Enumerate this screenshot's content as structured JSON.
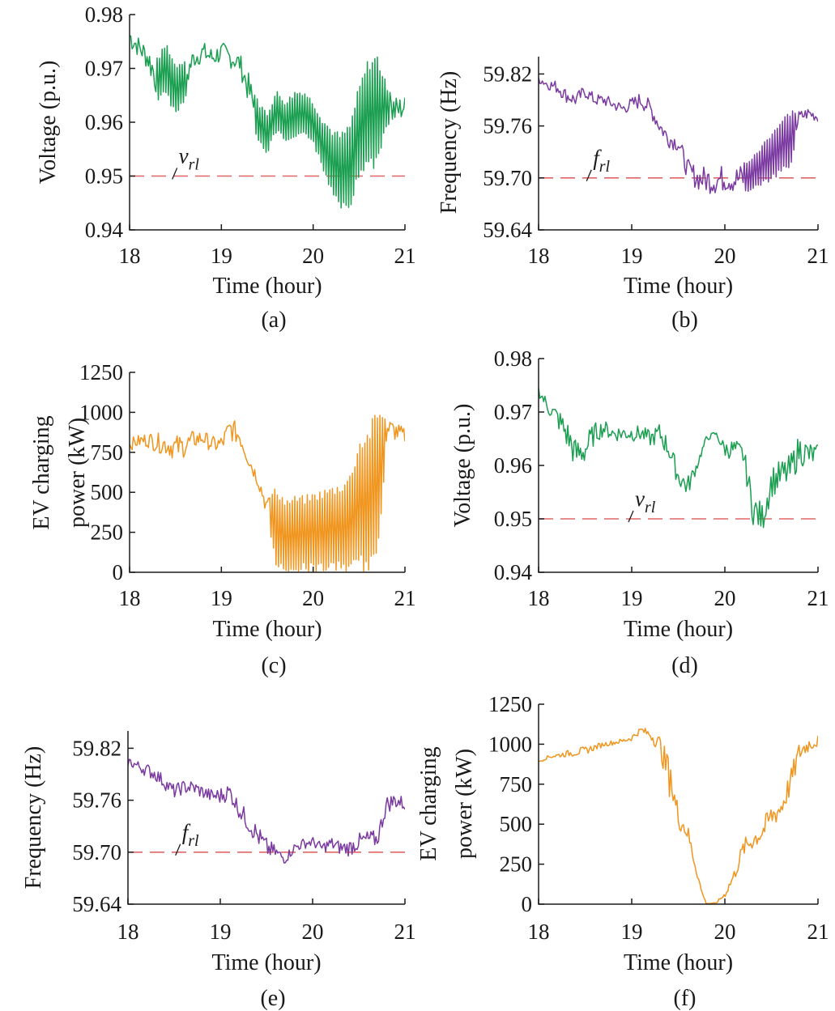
{
  "chart_data": [
    {
      "type": "line",
      "caption": "(a)",
      "xlabel": "Time (hour)",
      "ylabel": "Voltage (p.u.)",
      "xlim": [
        18,
        21
      ],
      "ylim": [
        0.94,
        0.98
      ],
      "xticks": [
        18,
        19,
        20,
        21
      ],
      "yticks": [
        0.94,
        0.95,
        0.96,
        0.97,
        0.98
      ],
      "ytick_labels": [
        "0.94",
        "0.95",
        "0.96",
        "0.97",
        "0.98"
      ],
      "reference": {
        "label": "v",
        "subscript": "rl",
        "value": 0.95,
        "at_x": 18.5
      },
      "series": [
        {
          "color": "#1a9e50",
          "x": [
            18.0,
            18.1,
            18.2,
            18.3,
            18.4,
            18.5,
            18.6,
            18.7,
            18.8,
            18.9,
            19.0,
            19.1,
            19.2,
            19.3,
            19.4,
            19.5,
            19.6,
            19.7,
            19.8,
            19.9,
            20.0,
            20.1,
            20.2,
            20.3,
            20.4,
            20.5,
            20.6,
            20.7,
            20.8,
            20.9,
            21.0
          ],
          "y": [
            0.976,
            0.974,
            0.972,
            0.968,
            0.97,
            0.966,
            0.968,
            0.972,
            0.973,
            0.972,
            0.973,
            0.972,
            0.971,
            0.966,
            0.96,
            0.958,
            0.962,
            0.96,
            0.961,
            0.962,
            0.96,
            0.956,
            0.953,
            0.951,
            0.952,
            0.958,
            0.962,
            0.962,
            0.963,
            0.962,
            0.963
          ],
          "amp": [
            0.0025,
            0.002,
            0.0025,
            0.004,
            0.005,
            0.005,
            0.004,
            0.002,
            0.002,
            0.002,
            0.002,
            0.002,
            0.002,
            0.003,
            0.004,
            0.004,
            0.004,
            0.004,
            0.005,
            0.004,
            0.004,
            0.005,
            0.006,
            0.007,
            0.008,
            0.009,
            0.01,
            0.011,
            0.004,
            0.003,
            0.002
          ]
        }
      ]
    },
    {
      "type": "line",
      "caption": "(b)",
      "xlabel": "Time (hour)",
      "ylabel": "Frequency (Hz)",
      "xlim": [
        18,
        21
      ],
      "ylim": [
        59.64,
        59.84
      ],
      "xticks": [
        18,
        19,
        20,
        21
      ],
      "yticks": [
        59.64,
        59.7,
        59.76,
        59.82
      ],
      "ytick_labels": [
        "59.64",
        "59.70",
        "59.76",
        "59.82"
      ],
      "reference": {
        "label": "f",
        "subscript": "rl",
        "value": 59.7,
        "at_x": 18.55
      },
      "series": [
        {
          "color": "#7a3aa0",
          "x": [
            18.0,
            18.1,
            18.2,
            18.3,
            18.4,
            18.5,
            18.6,
            18.7,
            18.8,
            18.9,
            19.0,
            19.1,
            19.2,
            19.3,
            19.4,
            19.5,
            19.6,
            19.7,
            19.8,
            19.9,
            20.0,
            20.1,
            20.2,
            20.3,
            20.4,
            20.5,
            20.6,
            20.7,
            20.8,
            20.9,
            21.0
          ],
          "y": [
            59.815,
            59.808,
            59.805,
            59.795,
            59.79,
            59.8,
            59.79,
            59.79,
            59.785,
            59.78,
            59.785,
            59.79,
            59.78,
            59.76,
            59.745,
            59.74,
            59.71,
            59.7,
            59.698,
            59.697,
            59.7,
            59.698,
            59.7,
            59.705,
            59.715,
            59.725,
            59.735,
            59.745,
            59.77,
            59.775,
            59.77
          ],
          "amp": [
            0.006,
            0.006,
            0.008,
            0.008,
            0.008,
            0.008,
            0.007,
            0.007,
            0.007,
            0.007,
            0.008,
            0.01,
            0.01,
            0.01,
            0.01,
            0.01,
            0.012,
            0.014,
            0.016,
            0.016,
            0.016,
            0.016,
            0.018,
            0.02,
            0.024,
            0.03,
            0.032,
            0.034,
            0.008,
            0.007,
            0.006
          ]
        }
      ]
    },
    {
      "type": "line",
      "caption": "(c)",
      "xlabel": "Time (hour)",
      "ylabel": [
        "EV charging",
        "power (kW)"
      ],
      "xlim": [
        18,
        21
      ],
      "ylim": [
        0,
        1250
      ],
      "xticks": [
        18,
        19,
        20,
        21
      ],
      "yticks": [
        0,
        250,
        500,
        750,
        1000,
        1250
      ],
      "ytick_labels": [
        "0",
        "250",
        "500",
        "750",
        "1000",
        "1250"
      ],
      "series": [
        {
          "color": "#f0951e",
          "x": [
            18.0,
            18.1,
            18.2,
            18.3,
            18.4,
            18.5,
            18.6,
            18.7,
            18.8,
            18.9,
            19.0,
            19.1,
            19.2,
            19.3,
            19.4,
            19.5,
            19.6,
            19.7,
            19.8,
            19.9,
            20.0,
            20.1,
            20.2,
            20.3,
            20.4,
            20.5,
            20.6,
            20.7,
            20.8,
            20.9,
            21.0
          ],
          "y": [
            800,
            820,
            830,
            810,
            800,
            780,
            790,
            830,
            840,
            800,
            800,
            900,
            850,
            700,
            580,
            400,
            270,
            230,
            240,
            240,
            250,
            260,
            270,
            280,
            310,
            420,
            450,
            520,
            900,
            880,
            850
          ],
          "amp": [
            40,
            40,
            50,
            60,
            70,
            80,
            70,
            60,
            50,
            50,
            60,
            80,
            60,
            50,
            50,
            60,
            270,
            230,
            240,
            240,
            250,
            260,
            270,
            280,
            310,
            420,
            450,
            520,
            80,
            60,
            50
          ]
        }
      ]
    },
    {
      "type": "line",
      "caption": "(d)",
      "xlabel": "Time (hour)",
      "ylabel": "Voltage (p.u.)",
      "xlim": [
        18,
        21
      ],
      "ylim": [
        0.94,
        0.98
      ],
      "xticks": [
        18,
        19,
        20,
        21
      ],
      "yticks": [
        0.94,
        0.95,
        0.96,
        0.97,
        0.98
      ],
      "ytick_labels": [
        "0.94",
        "0.95",
        "0.96",
        "0.97",
        "0.98"
      ],
      "reference": {
        "label": "v",
        "subscript": "rl",
        "value": 0.95,
        "at_x": 19.0
      },
      "series": [
        {
          "color": "#1a9e50",
          "x": [
            18.0,
            18.1,
            18.2,
            18.3,
            18.4,
            18.5,
            18.6,
            18.7,
            18.8,
            18.9,
            19.0,
            19.1,
            19.2,
            19.3,
            19.4,
            19.5,
            19.6,
            19.7,
            19.8,
            19.9,
            20.0,
            20.1,
            20.2,
            20.3,
            20.4,
            20.5,
            20.6,
            20.7,
            20.8,
            20.9,
            21.0
          ],
          "y": [
            0.974,
            0.971,
            0.969,
            0.966,
            0.962,
            0.963,
            0.966,
            0.967,
            0.966,
            0.966,
            0.966,
            0.966,
            0.965,
            0.966,
            0.963,
            0.958,
            0.956,
            0.96,
            0.965,
            0.966,
            0.963,
            0.963,
            0.962,
            0.952,
            0.95,
            0.957,
            0.958,
            0.959,
            0.963,
            0.962,
            0.962
          ],
          "amp": [
            0.001,
            0.0015,
            0.002,
            0.003,
            0.003,
            0.003,
            0.002,
            0.0015,
            0.0015,
            0.0015,
            0.0015,
            0.0015,
            0.0015,
            0.002,
            0.002,
            0.002,
            0.002,
            0.001,
            0.0005,
            0.0005,
            0.0015,
            0.002,
            0.002,
            0.003,
            0.003,
            0.003,
            0.003,
            0.003,
            0.003,
            0.0025,
            0.002
          ]
        }
      ]
    },
    {
      "type": "line",
      "caption": "(e)",
      "xlabel": "Time (hour)",
      "ylabel": "Frequency (Hz)",
      "xlim": [
        18,
        21
      ],
      "ylim": [
        59.64,
        59.84
      ],
      "xticks": [
        18,
        19,
        20,
        21
      ],
      "yticks": [
        59.64,
        59.7,
        59.76,
        59.82
      ],
      "ytick_labels": [
        "59.64",
        "59.70",
        "59.76",
        "59.82"
      ],
      "reference": {
        "label": "f",
        "subscript": "rl",
        "value": 59.7,
        "at_x": 18.55
      },
      "series": [
        {
          "color": "#7a3aa0",
          "x": [
            18.0,
            18.1,
            18.2,
            18.3,
            18.4,
            18.5,
            18.6,
            18.7,
            18.8,
            18.9,
            19.0,
            19.1,
            19.2,
            19.3,
            19.4,
            19.5,
            19.6,
            19.7,
            19.8,
            19.9,
            20.0,
            20.1,
            20.2,
            20.3,
            20.4,
            20.5,
            20.6,
            20.7,
            20.8,
            20.9,
            21.0
          ],
          "y": [
            59.805,
            59.8,
            59.795,
            59.79,
            59.78,
            59.77,
            59.775,
            59.775,
            59.77,
            59.765,
            59.765,
            59.77,
            59.75,
            59.735,
            59.72,
            59.705,
            59.7,
            59.692,
            59.705,
            59.71,
            59.712,
            59.705,
            59.71,
            59.705,
            59.705,
            59.712,
            59.715,
            59.715,
            59.755,
            59.76,
            59.755
          ],
          "amp": [
            0.006,
            0.006,
            0.008,
            0.008,
            0.008,
            0.008,
            0.008,
            0.008,
            0.008,
            0.008,
            0.01,
            0.01,
            0.01,
            0.012,
            0.012,
            0.012,
            0.008,
            0.006,
            0.006,
            0.006,
            0.006,
            0.006,
            0.008,
            0.008,
            0.01,
            0.01,
            0.01,
            0.01,
            0.01,
            0.01,
            0.008
          ]
        }
      ]
    },
    {
      "type": "line",
      "caption": "(f)",
      "xlabel": "Time (hour)",
      "ylabel": [
        "EV charging",
        "power (kW)"
      ],
      "xlim": [
        18,
        21
      ],
      "ylim": [
        0,
        1250
      ],
      "xticks": [
        18,
        19,
        20,
        21
      ],
      "yticks": [
        0,
        250,
        500,
        750,
        1000,
        1250
      ],
      "ytick_labels": [
        "0",
        "250",
        "500",
        "750",
        "1000",
        "1250"
      ],
      "series": [
        {
          "color": "#f0951e",
          "x": [
            18.0,
            18.1,
            18.2,
            18.3,
            18.4,
            18.5,
            18.6,
            18.7,
            18.8,
            18.9,
            19.0,
            19.1,
            19.2,
            19.3,
            19.4,
            19.5,
            19.6,
            19.7,
            19.75,
            19.8,
            19.9,
            20.0,
            20.1,
            20.2,
            20.3,
            20.4,
            20.5,
            20.6,
            20.7,
            20.8,
            20.9,
            21.0
          ],
          "y": [
            890,
            920,
            930,
            940,
            950,
            960,
            980,
            1000,
            1010,
            1020,
            1040,
            1090,
            1060,
            1000,
            800,
            550,
            450,
            200,
            80,
            5,
            5,
            60,
            180,
            350,
            400,
            450,
            550,
            600,
            750,
            950,
            1000,
            1020
          ],
          "amp": [
            8,
            10,
            15,
            20,
            25,
            25,
            20,
            15,
            15,
            15,
            20,
            20,
            30,
            60,
            120,
            80,
            60,
            30,
            10,
            3,
            3,
            20,
            40,
            60,
            60,
            70,
            80,
            80,
            80,
            70,
            50,
            40
          ]
        }
      ]
    }
  ]
}
